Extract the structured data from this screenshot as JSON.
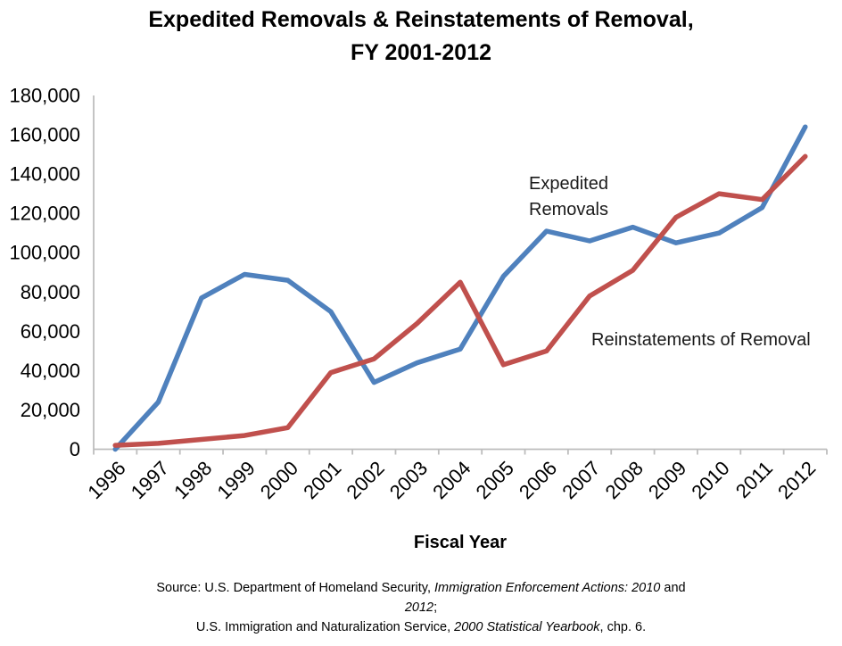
{
  "title": {
    "line1": "Expedited Removals & Reinstatements of Removal,",
    "line2": "FY 2001-2012"
  },
  "annotations": {
    "expedited_label": "Expedited Removals",
    "reinstatements_label": "Reinstatements of Removal"
  },
  "chart_data": {
    "type": "line",
    "title": "Expedited Removals & Reinstatements of Removal, FY 2001-2012",
    "xlabel": "Fiscal Year",
    "ylabel": "",
    "categories": [
      "1996",
      "1997",
      "1998",
      "1999",
      "2000",
      "2001",
      "2002",
      "2003",
      "2004",
      "2005",
      "2006",
      "2007",
      "2008",
      "2009",
      "2010",
      "2011",
      "2012"
    ],
    "series": [
      {
        "name": "Expedited Removals",
        "color": "#4F81BD",
        "values": [
          0,
          24000,
          77000,
          89000,
          86000,
          70000,
          34000,
          44000,
          51000,
          88000,
          111000,
          106000,
          113000,
          105000,
          110000,
          123000,
          164000
        ]
      },
      {
        "name": "Reinstatements of Removal",
        "color": "#C0504D",
        "values": [
          2000,
          3000,
          5000,
          7000,
          11000,
          39000,
          46000,
          64000,
          85000,
          43000,
          50000,
          78000,
          91000,
          118000,
          130000,
          127000,
          149000
        ]
      }
    ],
    "ylim": [
      0,
      180000
    ],
    "ytick_step": 20000,
    "ytick_labels": [
      "0",
      "20,000",
      "40,000",
      "60,000",
      "80,000",
      "100,000",
      "120,000",
      "140,000",
      "160,000",
      "180,000"
    ],
    "grid": false,
    "legend": "inline-text-labels",
    "axis_color": "#BDBDBD",
    "tick_label_color": "#000000"
  },
  "source": {
    "lines": [
      [
        {
          "t": "Source: U.S. Department of Homeland Security, ",
          "i": false
        },
        {
          "t": "Immigration Enforcement Actions: 2010",
          "i": true
        },
        {
          "t": " and",
          "i": false
        }
      ],
      [
        {
          "t": "2012",
          "i": true
        },
        {
          "t": ";",
          "i": false
        }
      ],
      [
        {
          "t": "U.S. Immigration and Naturalization Service, ",
          "i": false
        },
        {
          "t": "2000 Statistical Yearbook",
          "i": true
        },
        {
          "t": ", chp. 6.",
          "i": false
        }
      ]
    ]
  }
}
